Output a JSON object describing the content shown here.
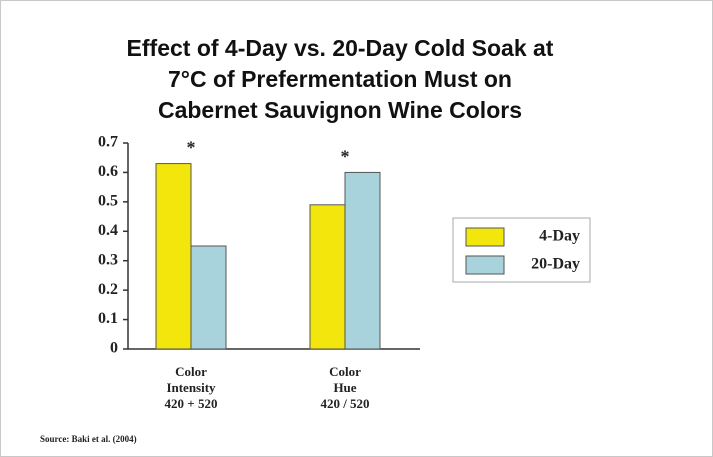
{
  "chart_data": {
    "type": "bar",
    "title": [
      "Effect of 4-Day vs. 20-Day Cold Soak at",
      "7°C of Prefermentation Must on",
      "Cabernet Sauvignon Wine Colors"
    ],
    "categories": [
      [
        "Color",
        "Intensity",
        "420 + 520"
      ],
      [
        "Color",
        "Hue",
        "420 / 520"
      ]
    ],
    "series": [
      {
        "name": "4-Day",
        "color": "#f2e60c",
        "values": [
          0.63,
          0.49
        ]
      },
      {
        "name": "20-Day",
        "color": "#a9d3dc",
        "values": [
          0.35,
          0.6
        ]
      }
    ],
    "annotations": [
      "*",
      "*"
    ],
    "ylim": [
      0,
      0.7
    ],
    "yticks": [
      0,
      0.1,
      0.2,
      0.3,
      0.4,
      0.5,
      0.6,
      0.7
    ],
    "grid": false,
    "legend": "right",
    "source": "Source: Baki et al. (2004)"
  }
}
